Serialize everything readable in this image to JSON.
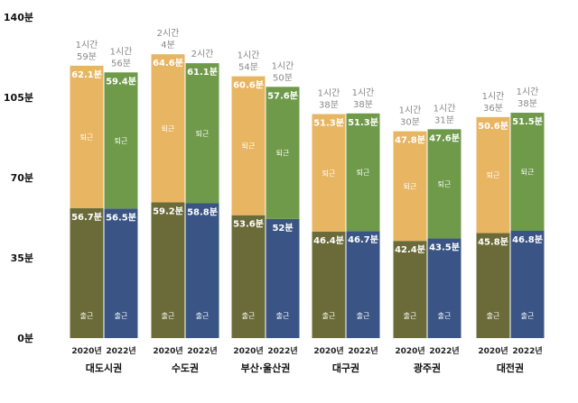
{
  "chart_data": {
    "type": "bar",
    "stacked": true,
    "y_ticks": [
      "0분",
      "35분",
      "70분",
      "105분",
      "140분"
    ],
    "ylim": [
      0,
      140
    ],
    "grid": false,
    "colors": {
      "commute_2020": "#6b6b3a",
      "commute_2022": "#3a5585",
      "return_2020": "#e8b563",
      "return_2022": "#6e9a4a"
    },
    "segment_names": {
      "commute": "출근",
      "return": "퇴근"
    },
    "groups": [
      {
        "region": "대도시권",
        "bars": [
          {
            "year": "2020년",
            "commute": 56.7,
            "return": 62.1,
            "commute_label": "56.7분",
            "return_label": "62.1분",
            "total_line1": "1시간",
            "total_line2": "59분"
          },
          {
            "year": "2022년",
            "commute": 56.5,
            "return": 59.4,
            "commute_label": "56.5분",
            "return_label": "59.4분",
            "total_line1": "1시간",
            "total_line2": "56분"
          }
        ]
      },
      {
        "region": "수도권",
        "bars": [
          {
            "year": "2020년",
            "commute": 59.2,
            "return": 64.6,
            "commute_label": "59.2분",
            "return_label": "64.6분",
            "total_line1": "2시간",
            "total_line2": "4분"
          },
          {
            "year": "2022년",
            "commute": 58.8,
            "return": 61.1,
            "commute_label": "58.8분",
            "return_label": "61.1분",
            "total_line1": "2시간",
            "total_line2": ""
          }
        ]
      },
      {
        "region": "부산·울산권",
        "bars": [
          {
            "year": "2020년",
            "commute": 53.6,
            "return": 60.6,
            "commute_label": "53.6분",
            "return_label": "60.6분",
            "total_line1": "1시간",
            "total_line2": "54분"
          },
          {
            "year": "2022년",
            "commute": 52,
            "return": 57.6,
            "commute_label": "52분",
            "return_label": "57.6분",
            "total_line1": "1시간",
            "total_line2": "50분"
          }
        ]
      },
      {
        "region": "대구권",
        "bars": [
          {
            "year": "2020년",
            "commute": 46.4,
            "return": 51.3,
            "commute_label": "46.4분",
            "return_label": "51.3분",
            "total_line1": "1시간",
            "total_line2": "38분"
          },
          {
            "year": "2022년",
            "commute": 46.7,
            "return": 51.3,
            "commute_label": "46.7분",
            "return_label": "51.3분",
            "total_line1": "1시간",
            "total_line2": "38분"
          }
        ]
      },
      {
        "region": "광주권",
        "bars": [
          {
            "year": "2020년",
            "commute": 42.4,
            "return": 47.8,
            "commute_label": "42.4분",
            "return_label": "47.8분",
            "total_line1": "1시간",
            "total_line2": "30분"
          },
          {
            "year": "2022년",
            "commute": 43.5,
            "return": 47.6,
            "commute_label": "43.5분",
            "return_label": "47.6분",
            "total_line1": "1시간",
            "total_line2": "31분"
          }
        ]
      },
      {
        "region": "대전권",
        "bars": [
          {
            "year": "2020년",
            "commute": 45.8,
            "return": 50.6,
            "commute_label": "45.8분",
            "return_label": "50.6분",
            "total_line1": "1시간",
            "total_line2": "36분"
          },
          {
            "year": "2022년",
            "commute": 46.8,
            "return": 51.5,
            "commute_label": "46.8분",
            "return_label": "51.5분",
            "total_line1": "1시간",
            "total_line2": "38분"
          }
        ]
      }
    ]
  }
}
